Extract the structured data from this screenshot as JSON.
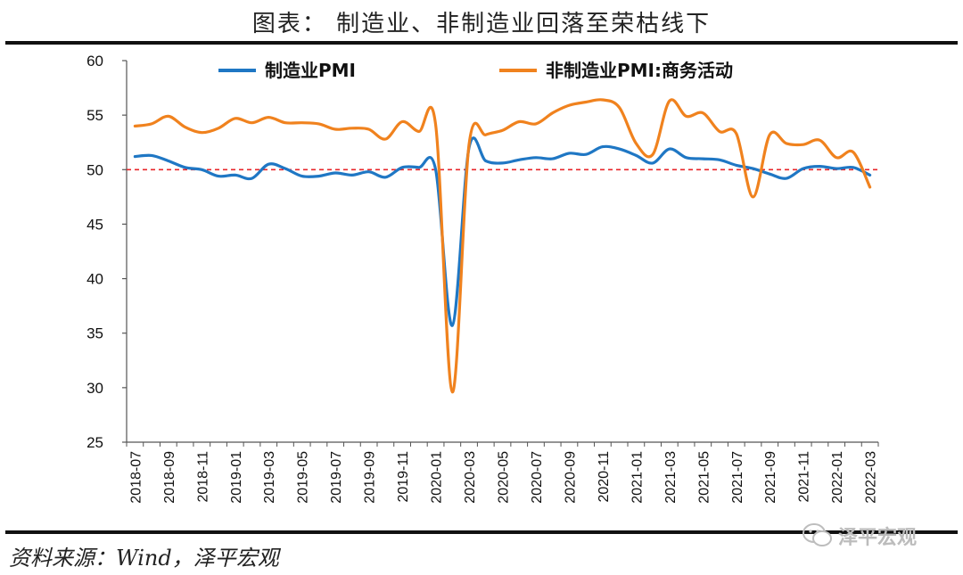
{
  "title": "图表： 制造业、非制造业回落至荣枯线下",
  "source": "资料来源：Wind，泽平宏观",
  "watermark": "泽平宏观",
  "chart_data": {
    "type": "line",
    "ylim": [
      25,
      60
    ],
    "yticks": [
      25,
      30,
      35,
      40,
      45,
      50,
      55,
      60
    ],
    "reference_line": {
      "y": 50,
      "color": "#e8262a",
      "style": "dashed"
    },
    "x_tick_labels": [
      "2018-07",
      "2018-09",
      "2018-11",
      "2019-01",
      "2019-03",
      "2019-05",
      "2019-07",
      "2019-09",
      "2019-11",
      "2020-01",
      "2020-03",
      "2020-05",
      "2020-07",
      "2020-09",
      "2020-11",
      "2021-01",
      "2021-03",
      "2021-05",
      "2021-07",
      "2021-09",
      "2021-11",
      "2022-01",
      "2022-03"
    ],
    "x": [
      "2018-07",
      "2018-08",
      "2018-09",
      "2018-10",
      "2018-11",
      "2018-12",
      "2019-01",
      "2019-02",
      "2019-03",
      "2019-04",
      "2019-05",
      "2019-06",
      "2019-07",
      "2019-08",
      "2019-09",
      "2019-10",
      "2019-11",
      "2019-12",
      "2020-01",
      "2020-02",
      "2020-03",
      "2020-04",
      "2020-05",
      "2020-06",
      "2020-07",
      "2020-08",
      "2020-09",
      "2020-10",
      "2020-11",
      "2020-12",
      "2021-01",
      "2021-02",
      "2021-03",
      "2021-04",
      "2021-05",
      "2021-06",
      "2021-07",
      "2021-08",
      "2021-09",
      "2021-10",
      "2021-11",
      "2021-12",
      "2022-01",
      "2022-02",
      "2022-03"
    ],
    "legend_position": "top",
    "grid": false,
    "series": [
      {
        "name": "制造业PMI",
        "color": "#1f77c4",
        "values": [
          51.2,
          51.3,
          50.8,
          50.2,
          50.0,
          49.4,
          49.5,
          49.2,
          50.5,
          50.1,
          49.4,
          49.4,
          49.7,
          49.5,
          49.8,
          49.3,
          50.2,
          50.2,
          50.0,
          35.7,
          52.0,
          50.8,
          50.6,
          50.9,
          51.1,
          51.0,
          51.5,
          51.4,
          52.1,
          51.9,
          51.3,
          50.6,
          51.9,
          51.1,
          51.0,
          50.9,
          50.4,
          50.1,
          49.6,
          49.2,
          50.1,
          50.3,
          50.1,
          50.2,
          49.5
        ]
      },
      {
        "name": "非制造业PMI:商务活动",
        "color": "#f0821e",
        "values": [
          54.0,
          54.2,
          54.9,
          53.9,
          53.4,
          53.8,
          54.7,
          54.3,
          54.8,
          54.3,
          54.3,
          54.2,
          53.7,
          53.8,
          53.7,
          52.8,
          54.4,
          53.5,
          54.1,
          29.6,
          52.3,
          53.2,
          53.6,
          54.4,
          54.2,
          55.2,
          55.9,
          56.2,
          56.4,
          55.7,
          52.4,
          51.4,
          56.3,
          54.9,
          55.2,
          53.5,
          53.3,
          47.5,
          53.2,
          52.4,
          52.3,
          52.7,
          51.1,
          51.6,
          48.4
        ]
      }
    ]
  }
}
